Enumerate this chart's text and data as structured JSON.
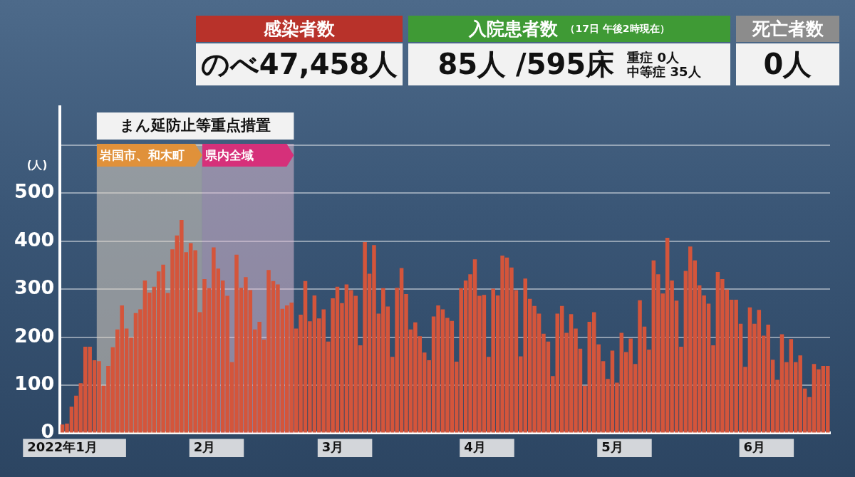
{
  "chart_data": {
    "type": "bar",
    "ylabel": "(人)",
    "annotations": [
      "感染者数",
      "のべ47,458人",
      "入院患者数",
      "（17日 午後2時現在）",
      "85人 /595床",
      "重症 0人",
      "中等症 35人",
      "死亡者数",
      "0人",
      "まん延防止等重点措置"
    ],
    "x": [
      "2022-01-01",
      "2022-01-02",
      "2022-01-03",
      "2022-01-04",
      "2022-01-05",
      "2022-01-06",
      "2022-01-07",
      "2022-01-08",
      "2022-01-09",
      "2022-01-10",
      "2022-01-11",
      "2022-01-12",
      "2022-01-13",
      "2022-01-14",
      "2022-01-15",
      "2022-01-16",
      "2022-01-17",
      "2022-01-18",
      "2022-01-19",
      "2022-01-20",
      "2022-01-21",
      "2022-01-22",
      "2022-01-23",
      "2022-01-24",
      "2022-01-25",
      "2022-01-26",
      "2022-01-27",
      "2022-01-28",
      "2022-01-29",
      "2022-01-30",
      "2022-01-31",
      "2022-02-01",
      "2022-02-02",
      "2022-02-03",
      "2022-02-04",
      "2022-02-05",
      "2022-02-06",
      "2022-02-07",
      "2022-02-08",
      "2022-02-09",
      "2022-02-10",
      "2022-02-11",
      "2022-02-12",
      "2022-02-13",
      "2022-02-14",
      "2022-02-15",
      "2022-02-16",
      "2022-02-17",
      "2022-02-18",
      "2022-02-19",
      "2022-02-20",
      "2022-02-21",
      "2022-02-22",
      "2022-02-23",
      "2022-02-24",
      "2022-02-25",
      "2022-02-26",
      "2022-02-27",
      "2022-02-28",
      "2022-03-01",
      "2022-03-02",
      "2022-03-03",
      "2022-03-04",
      "2022-03-05",
      "2022-03-06",
      "2022-03-07",
      "2022-03-08",
      "2022-03-09",
      "2022-03-10",
      "2022-03-11",
      "2022-03-12",
      "2022-03-13",
      "2022-03-14",
      "2022-03-15",
      "2022-03-16",
      "2022-03-17",
      "2022-03-18",
      "2022-03-19",
      "2022-03-20",
      "2022-03-21",
      "2022-03-22",
      "2022-03-23",
      "2022-03-24",
      "2022-03-25",
      "2022-03-26",
      "2022-03-27",
      "2022-03-28",
      "2022-03-29",
      "2022-03-30",
      "2022-03-31",
      "2022-04-01",
      "2022-04-02",
      "2022-04-03",
      "2022-04-04",
      "2022-04-05",
      "2022-04-06",
      "2022-04-07",
      "2022-04-08",
      "2022-04-09",
      "2022-04-10",
      "2022-04-11",
      "2022-04-12",
      "2022-04-13",
      "2022-04-14",
      "2022-04-15",
      "2022-04-16",
      "2022-04-17",
      "2022-04-18",
      "2022-04-19",
      "2022-04-20",
      "2022-04-21",
      "2022-04-22",
      "2022-04-23",
      "2022-04-24",
      "2022-04-25",
      "2022-04-26",
      "2022-04-27",
      "2022-04-28",
      "2022-04-29",
      "2022-04-30",
      "2022-05-01",
      "2022-05-02",
      "2022-05-03",
      "2022-05-04",
      "2022-05-05",
      "2022-05-06",
      "2022-05-07",
      "2022-05-08",
      "2022-05-09",
      "2022-05-10",
      "2022-05-11",
      "2022-05-12",
      "2022-05-13",
      "2022-05-14",
      "2022-05-15",
      "2022-05-16",
      "2022-05-17",
      "2022-05-18",
      "2022-05-19",
      "2022-05-20",
      "2022-05-21",
      "2022-05-22",
      "2022-05-23",
      "2022-05-24",
      "2022-05-25",
      "2022-05-26",
      "2022-05-27",
      "2022-05-28",
      "2022-05-29",
      "2022-05-30",
      "2022-05-31",
      "2022-06-01",
      "2022-06-02",
      "2022-06-03",
      "2022-06-04",
      "2022-06-05",
      "2022-06-06",
      "2022-06-07",
      "2022-06-08",
      "2022-06-09",
      "2022-06-10",
      "2022-06-11",
      "2022-06-12",
      "2022-06-13",
      "2022-06-14",
      "2022-06-15",
      "2022-06-16",
      "2022-06-17"
    ],
    "series": [
      {
        "color": "#d4553b",
        "values": [
          18,
          20,
          55,
          78,
          104,
          180,
          180,
          152,
          150,
          99,
          140,
          179,
          216,
          266,
          218,
          199,
          250,
          258,
          318,
          293,
          305,
          337,
          351,
          292,
          383,
          412,
          444,
          377,
          396,
          381,
          252,
          321,
          302,
          387,
          343,
          318,
          286,
          148,
          372,
          303,
          325,
          298,
          216,
          232,
          195,
          340,
          317,
          310,
          259,
          266,
          272,
          218,
          247,
          317,
          233,
          287,
          239,
          258,
          191,
          281,
          305,
          271,
          310,
          298,
          286,
          183,
          398,
          332,
          392,
          249,
          302,
          264,
          159,
          303,
          344,
          290,
          216,
          231,
          202,
          168,
          152,
          243,
          266,
          258,
          240,
          234,
          149,
          302,
          318,
          331,
          362,
          286,
          288,
          159,
          301,
          287,
          370,
          366,
          345,
          298,
          160,
          322,
          280,
          265,
          249,
          207,
          191,
          119,
          249,
          265,
          209,
          248,
          218,
          176,
          99,
          232,
          252,
          185,
          150,
          113,
          172,
          105,
          209,
          169,
          197,
          144,
          277,
          222,
          174,
          360,
          331,
          291,
          407,
          318,
          276,
          180,
          338,
          389,
          360,
          308,
          287,
          270,
          183,
          336,
          321,
          299,
          278,
          278,
          228,
          138,
          262,
          228,
          257,
          203,
          226,
          153,
          111,
          206,
          148,
          196,
          148,
          162,
          93,
          75,
          144,
          133,
          140,
          140
        ]
      }
    ],
    "xlim": [
      "2021-12-31T12:00",
      "2022-06-17T12:00"
    ],
    "xticks": [
      {
        "value": "2022-01-01",
        "label": "2022年1月"
      },
      {
        "value": "2022-02-01",
        "label": "2月"
      },
      {
        "value": "2022-03-01",
        "label": "3月"
      },
      {
        "value": "2022-04-01",
        "label": "4月"
      },
      {
        "value": "2022-05-01",
        "label": "5月"
      },
      {
        "value": "2022-06-01",
        "label": "6月"
      }
    ],
    "ylim": [
      0,
      680
    ],
    "yticks": [
      0,
      100,
      200,
      300,
      400,
      500,
      {
        "value": 600,
        "label": null
      }
    ],
    "bands": [
      {
        "axis": "x",
        "from": "2022-01-08T12:00",
        "to": "2022-01-31T12:00",
        "label": "岩国市、和木町",
        "color": "#e0913a"
      },
      {
        "axis": "x",
        "from": "2022-01-31T12:00",
        "to": "2022-02-20T12:00",
        "label": "県内全域",
        "color": "#d6307a"
      }
    ],
    "grid": "y",
    "legend": false
  }
}
